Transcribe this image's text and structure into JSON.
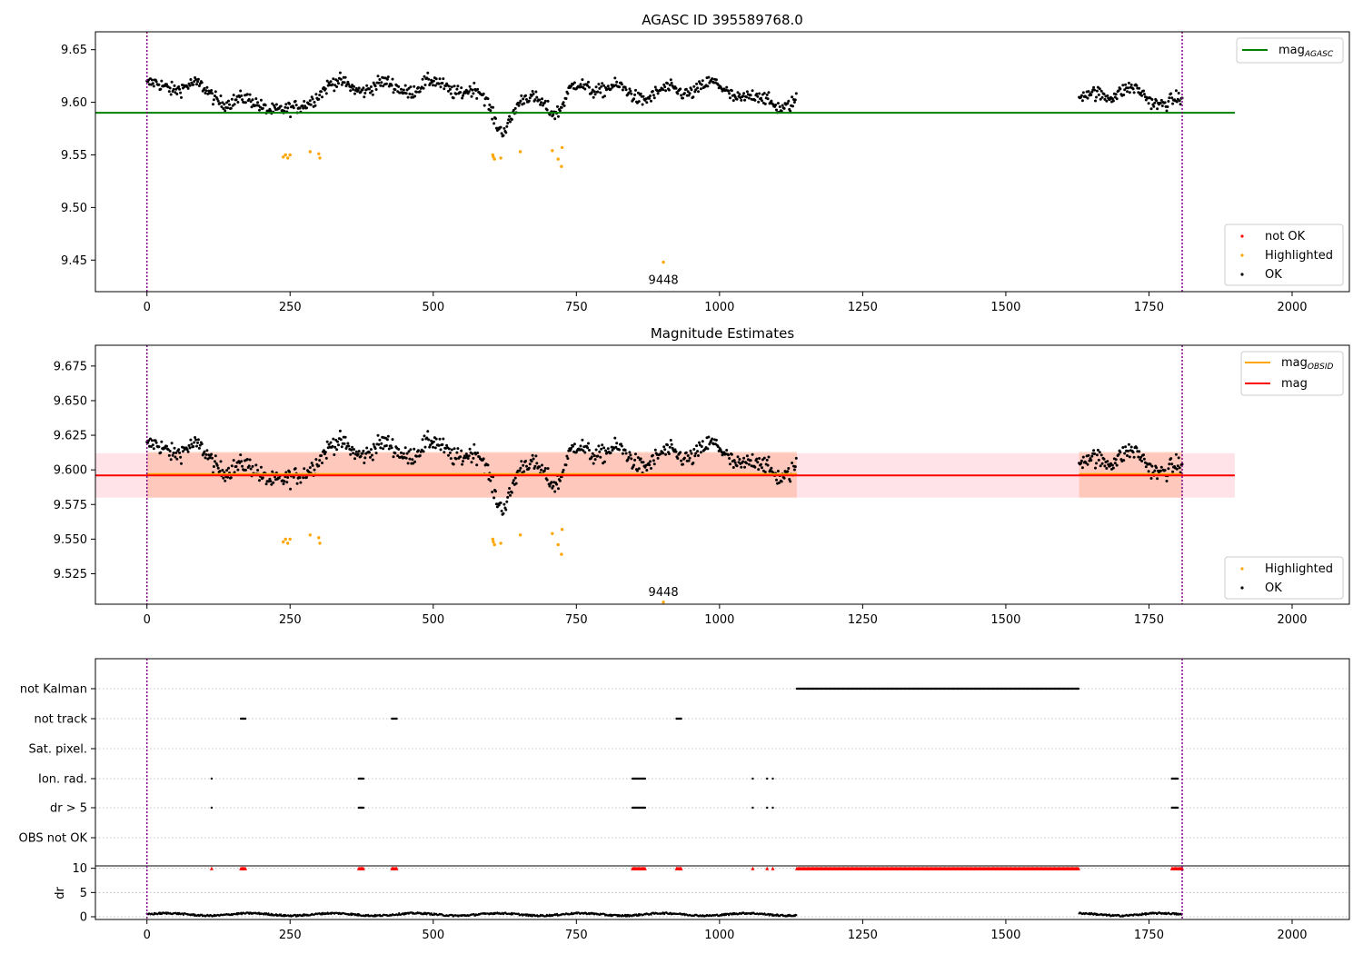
{
  "colors": {
    "ok": "#000000",
    "highlighted": "#ffa500",
    "not_ok": "#ff0000",
    "mag_agasc": "#008000",
    "mag": "#ff0000",
    "mag_obsid": "#ffa500",
    "band_outer": "#ffc0cb",
    "band_inner": "#ffa07a",
    "obs_boundary": "#800080",
    "grid": "#b0b0b0"
  },
  "chart_data": [
    {
      "type": "scatter",
      "title": "AGASC ID 395589768.0",
      "xlabel": "",
      "ylabel": "",
      "xlim": [
        -90,
        2100
      ],
      "ylim": [
        9.42,
        9.667
      ],
      "xticks": [
        "0",
        "250",
        "500",
        "750",
        "1000",
        "1250",
        "1500",
        "1750",
        "2000"
      ],
      "yticks": [
        "9.45",
        "9.50",
        "9.55",
        "9.60",
        "9.65"
      ],
      "grid": false,
      "obs_boundaries": [
        0,
        1808
      ],
      "reference_line": {
        "name": "mag_AGASC",
        "y": 9.59,
        "x": [
          -90,
          1900
        ]
      },
      "legend_top": {
        "placement": "top-right",
        "entries": [
          {
            "label": "mag",
            "subscript": "AGASC"
          }
        ]
      },
      "legend_bottom": {
        "placement": "bottom-right",
        "entries": [
          "not OK",
          "Highlighted",
          "OK"
        ]
      },
      "series": [
        {
          "name": "OK",
          "segments": [
            [
              0,
              1135,
              9.609
            ],
            [
              1628,
              1808,
              9.602
            ]
          ],
          "spread": 0.011
        },
        {
          "name": "Highlighted",
          "x": [
            238,
            242,
            246,
            250,
            285,
            300,
            302,
            604,
            605,
            607,
            618,
            652,
            708,
            718,
            724,
            725,
            902
          ],
          "y": [
            9.548,
            9.55,
            9.547,
            9.55,
            9.553,
            9.551,
            9.547,
            9.55,
            9.548,
            9.546,
            9.547,
            9.553,
            9.554,
            9.546,
            9.539,
            9.557,
            9.448
          ]
        },
        {
          "name": "not OK",
          "x": [],
          "y": []
        }
      ],
      "annotations": [
        {
          "text": "9448",
          "x": 902,
          "y": 9.448
        }
      ]
    },
    {
      "type": "scatter",
      "title": "Magnitude Estimates",
      "xlabel": "",
      "ylabel": "",
      "xlim": [
        -90,
        2100
      ],
      "ylim": [
        9.503,
        9.69
      ],
      "xticks": [
        "0",
        "250",
        "500",
        "750",
        "1000",
        "1250",
        "1500",
        "1750",
        "2000"
      ],
      "yticks": [
        "9.525",
        "9.550",
        "9.575",
        "9.600",
        "9.625",
        "9.650",
        "9.675"
      ],
      "grid": false,
      "obs_boundaries": [
        0,
        1808
      ],
      "mag_line": {
        "name": "mag",
        "y": 9.596,
        "x": [
          -90,
          1900
        ]
      },
      "mag_obsid_segments": [
        [
          0,
          1135,
          9.597
        ],
        [
          1628,
          1808,
          9.597
        ]
      ],
      "band_outer": {
        "x": [
          -90,
          1900
        ],
        "y": [
          9.58,
          9.612
        ]
      },
      "band_inner": [
        {
          "x": [
            0,
            1135
          ],
          "y": [
            9.58,
            9.613
          ]
        },
        {
          "x": [
            1628,
            1808
          ],
          "y": [
            9.58,
            9.613
          ]
        }
      ],
      "legend_top": {
        "placement": "top-right",
        "entries": [
          {
            "label": "mag",
            "subscript": "OBSID"
          },
          {
            "label": "mag",
            "subscript": ""
          }
        ]
      },
      "legend_bottom": {
        "placement": "bottom-right",
        "entries": [
          "Highlighted",
          "OK"
        ]
      },
      "annotations": [
        {
          "text": "9448",
          "x": 902,
          "y": 9.503
        }
      ]
    },
    {
      "type": "scatter",
      "title": "",
      "xlim": [
        -90,
        2100
      ],
      "xticks": [
        "0",
        "250",
        "500",
        "750",
        "1000",
        "1250",
        "1500",
        "1750",
        "2000"
      ],
      "flag_rows": [
        "not Kalman",
        "not track",
        "Sat. pixel.",
        "Ion. rad.",
        "dr > 5",
        "OBS not OK"
      ],
      "flags": {
        "not Kalman": [
          [
            1135,
            1628
          ]
        ],
        "not track": [
          [
            164,
            172
          ],
          [
            428,
            436
          ],
          [
            925,
            933
          ]
        ],
        "Sat. pixel.": [],
        "Ion. rad.": [
          [
            113,
            113
          ],
          [
            370,
            378
          ],
          [
            848,
            870
          ],
          [
            1058,
            1058
          ],
          [
            1083,
            1083
          ],
          [
            1093,
            1093
          ],
          [
            1790,
            1800
          ]
        ],
        "dr > 5": [
          [
            113,
            113
          ],
          [
            370,
            378
          ],
          [
            848,
            870
          ],
          [
            1058,
            1058
          ],
          [
            1083,
            1083
          ],
          [
            1093,
            1093
          ],
          [
            1790,
            1800
          ]
        ],
        "OBS not OK": []
      },
      "dr_panel": {
        "ylabel": "dr",
        "ylim": [
          0,
          10.5
        ],
        "yticks": [
          "0",
          "5",
          "10"
        ],
        "clipped_value": 10,
        "clipped": [
          [
            113,
            113
          ],
          [
            164,
            172
          ],
          [
            370,
            378
          ],
          [
            428,
            436
          ],
          [
            848,
            870
          ],
          [
            925,
            933
          ],
          [
            1058,
            1058
          ],
          [
            1083,
            1083
          ],
          [
            1093,
            1093
          ],
          [
            1135,
            1628
          ],
          [
            1790,
            1808
          ]
        ],
        "segments": [
          [
            0,
            1135
          ],
          [
            1628,
            1808
          ]
        ]
      }
    }
  ]
}
